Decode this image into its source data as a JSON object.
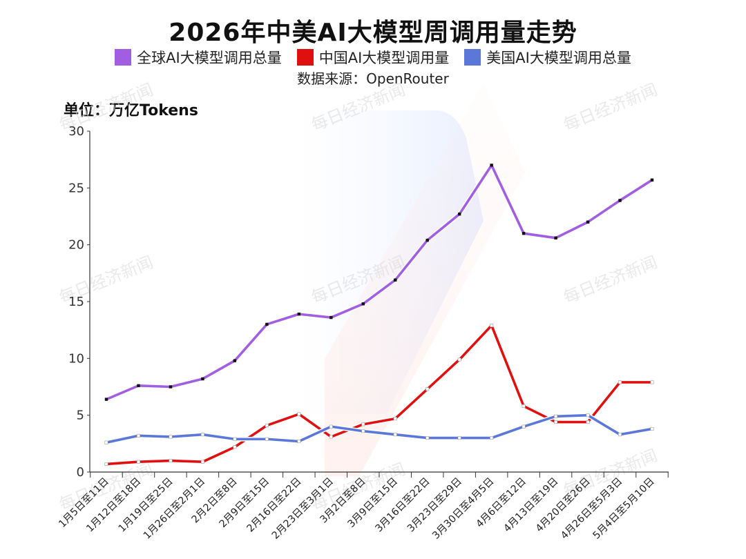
{
  "title": "2026年中美AI大模型周调用量走势",
  "legend": [
    {
      "label": "全球AI大模型调用总量",
      "color": "#a25ee0"
    },
    {
      "label": "中国AI大模型调用量",
      "color": "#e01010"
    },
    {
      "label": "美国AI大模型调用总量",
      "color": "#5b78d8"
    }
  ],
  "source": "数据来源：OpenRouter",
  "unit": "单位：万亿Tokens",
  "watermark": "每日经济新闻",
  "chart_data": {
    "type": "line",
    "title": "2026年中美AI大模型周调用量走势",
    "ylabel": "单位：万亿Tokens",
    "xlabel": "",
    "ylim": [
      0,
      30
    ],
    "yticks": [
      0,
      5,
      10,
      15,
      20,
      25,
      30
    ],
    "grid": false,
    "legend_position": "top-center",
    "categories": [
      "1月5日至11日",
      "1月12日至18日",
      "1月19日至25日",
      "1月26日至2月1日",
      "2月2日至8日",
      "2月9日至15日",
      "2月16日至22日",
      "2月23日至3月1日",
      "3月2日至8日",
      "3月9日至15日",
      "3月16日至22日",
      "3月23日至29日",
      "3月30日至4月5日",
      "4月6日至12日",
      "4月13日至19日",
      "4月20日至26日",
      "4月26日至5月3日",
      "5月4日至5月10日"
    ],
    "series": [
      {
        "name": "全球AI大模型调用总量",
        "color": "#a25ee0",
        "values": [
          6.4,
          7.6,
          7.5,
          8.2,
          9.8,
          13.0,
          13.9,
          13.6,
          14.8,
          16.9,
          20.4,
          22.7,
          27.0,
          21.0,
          20.6,
          22.0,
          23.9,
          25.7
        ]
      },
      {
        "name": "中国AI大模型调用量",
        "color": "#e01010",
        "values": [
          0.7,
          0.9,
          1.0,
          0.9,
          2.2,
          4.1,
          5.1,
          3.1,
          4.2,
          4.7,
          7.3,
          9.9,
          12.9,
          5.8,
          4.4,
          4.4,
          7.9,
          7.9
        ]
      },
      {
        "name": "美国AI大模型调用总量",
        "color": "#5b78d8",
        "values": [
          2.6,
          3.2,
          3.1,
          3.3,
          2.9,
          2.9,
          2.7,
          4.0,
          3.6,
          3.3,
          3.0,
          3.0,
          3.0,
          4.0,
          4.9,
          5.0,
          3.3,
          3.8
        ]
      }
    ]
  }
}
